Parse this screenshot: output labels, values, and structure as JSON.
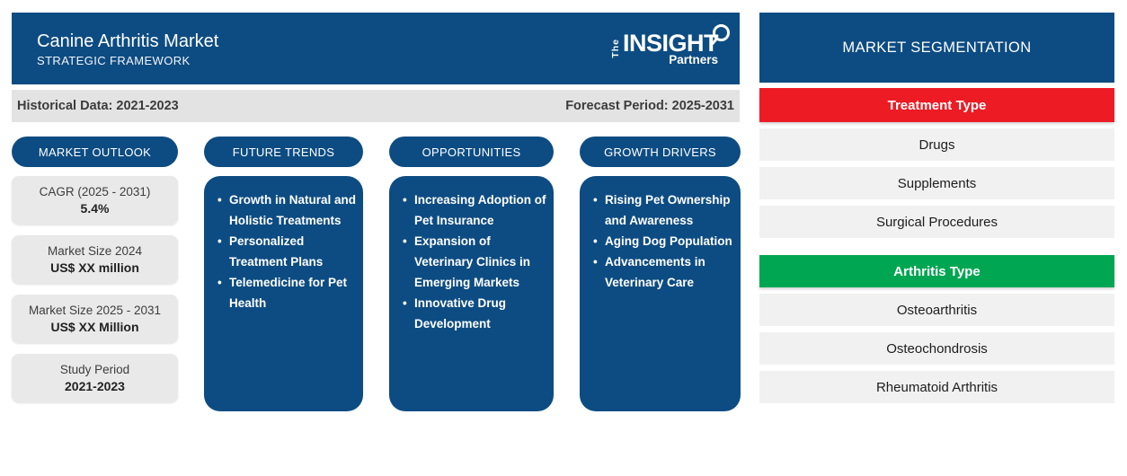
{
  "header": {
    "title": "Canine Arthritis Market",
    "subtitle": "STRATEGIC FRAMEWORK",
    "logo": {
      "the": "The",
      "insight": "INSIGHT",
      "partners": "Partners"
    }
  },
  "period_bar": {
    "historical": "Historical Data: 2021-2023",
    "forecast": "Forecast Period: 2025-2031"
  },
  "market_outlook": {
    "title": "MARKET OUTLOOK",
    "cards": [
      {
        "label": "CAGR (2025 - 2031)",
        "value": "5.4%"
      },
      {
        "label": "Market Size 2024",
        "value": "US$ XX million"
      },
      {
        "label": "Market Size 2025 - 2031",
        "value": "US$ XX Million"
      },
      {
        "label": "Study Period",
        "value": "2021-2023"
      }
    ]
  },
  "columns": [
    {
      "title": "FUTURE TRENDS",
      "items": [
        "Growth in Natural and Holistic Treatments",
        "Personalized Treatment Plans",
        "Telemedicine for Pet Health"
      ]
    },
    {
      "title": "OPPORTUNITIES",
      "items": [
        "Increasing Adoption of Pet Insurance",
        "Expansion of Veterinary Clinics in Emerging Markets",
        "Innovative Drug Development"
      ]
    },
    {
      "title": "GROWTH DRIVERS",
      "items": [
        "Rising Pet Ownership and Awareness",
        "Aging Dog Population",
        "Advancements in Veterinary Care"
      ]
    }
  ],
  "segmentation": {
    "title": "MARKET SEGMENTATION",
    "groups": [
      {
        "title": "Treatment Type",
        "color": "#ed1c24",
        "items": [
          "Drugs",
          "Supplements",
          "Surgical Procedures"
        ]
      },
      {
        "title": "Arthritis Type",
        "color": "#00a651",
        "items": [
          "Osteoarthritis",
          "Osteochondrosis",
          "Rheumatoid Arthritis"
        ]
      }
    ]
  },
  "colors": {
    "primary_blue": "#0d4c82",
    "treatment_type_red": "#ed1c24",
    "arthritis_type_green": "#00a651",
    "period_bar_gray": "#e3e3e3",
    "card_gray": "#e9e9e9",
    "row_gray": "#f1f1f1"
  }
}
